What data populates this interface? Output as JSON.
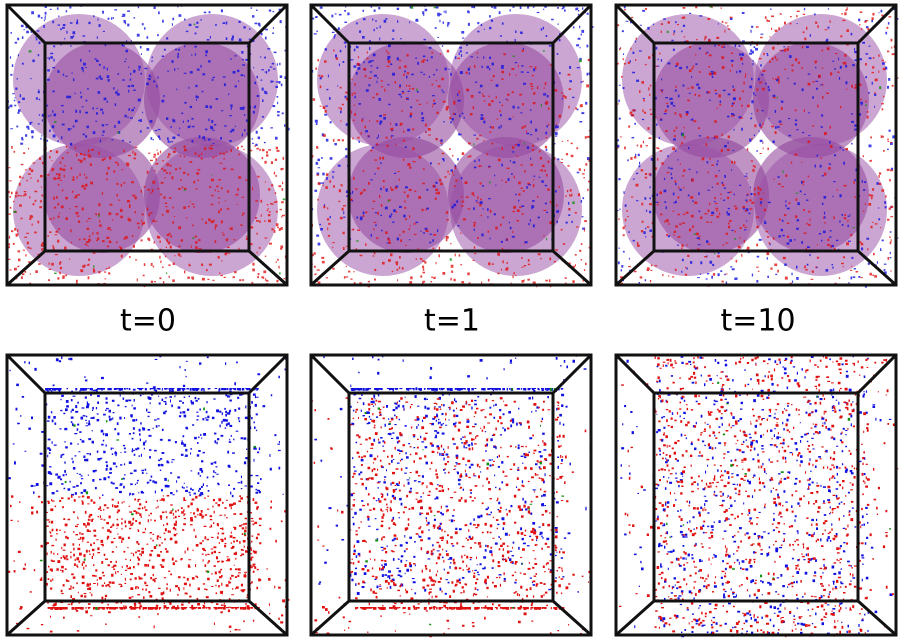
{
  "labels": [
    "t=0",
    "t=1",
    "t=10"
  ]
}
